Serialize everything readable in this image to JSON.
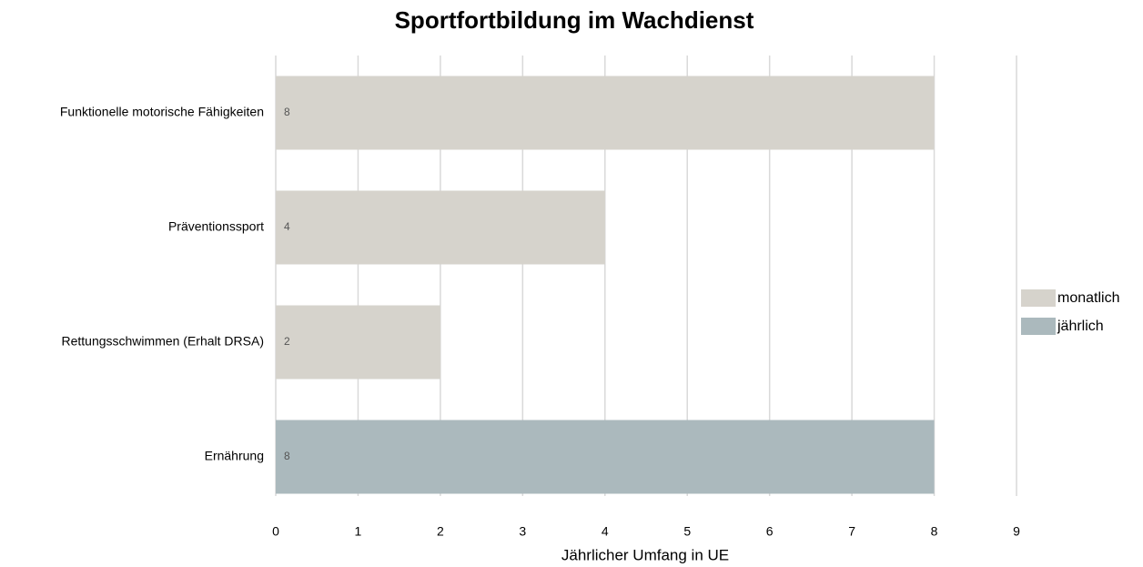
{
  "chart_data": {
    "type": "barh",
    "title": "Sportfortbildung im Wachdienst",
    "x_label": "Jährlicher Umfang in UE",
    "categories": [
      "Funktionelle motorische Fähigkeiten",
      "Präventionssport",
      "Rettungsschwimmen (Erhalt DRSA)",
      "Ernährung"
    ],
    "series": [
      {
        "name": "monatlich",
        "color": "#d6d3cc",
        "values": [
          8,
          4,
          2,
          null
        ]
      },
      {
        "name": "jährlich",
        "color": "#abb9bd",
        "values": [
          null,
          null,
          null,
          8
        ]
      }
    ],
    "xlim": [
      0,
      9
    ],
    "xticks": [
      0,
      1,
      2,
      3,
      4,
      5,
      6,
      7,
      8,
      9
    ],
    "grid": true,
    "legend": "right"
  }
}
